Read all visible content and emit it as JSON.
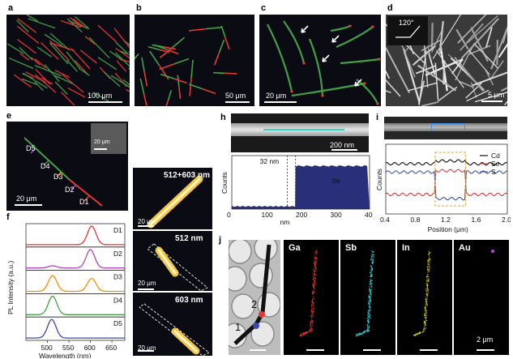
{
  "panel_labels": {
    "a": "a",
    "b": "b",
    "c": "c",
    "d": "d",
    "e": "e",
    "f": "f",
    "g": "g",
    "h": "h",
    "i": "i",
    "j": "j"
  },
  "scalebars": {
    "a": "100 μm",
    "b": "50 μm",
    "c": "20 μm",
    "d": "5 μm",
    "e": "20 μm",
    "e_inset": "20 μm",
    "g1": "20 μm",
    "g2": "20 μm",
    "g3": "20 μm",
    "h": "200 nm",
    "j": "2 μm"
  },
  "d_angle": "120°",
  "e_points": [
    "D5",
    "D4",
    "D3",
    "D2",
    "D1"
  ],
  "g_titles": [
    "512+603 nm",
    "512 nm",
    "603 nm"
  ],
  "h_annotation": "32 nm",
  "h_element": "Se",
  "j_points": [
    "1",
    "2"
  ],
  "j_maps": [
    "Ga",
    "Sb",
    "In",
    "Au"
  ],
  "j_map_colors": [
    "#e03030",
    "#30c8d0",
    "#e8e030",
    "#c040e0"
  ],
  "colors": {
    "red": "#e53935",
    "green": "#43a047",
    "orange": "#fb8c00",
    "purple": "#ab47bc",
    "blue": "#3949ab",
    "navy": "#2a2f7a"
  },
  "chart_data": [
    {
      "type": "line",
      "panel": "f",
      "xlabel": "Wavelength (nm)",
      "ylabel": "PL Intensity (a.u.)",
      "xlim": [
        450,
        680
      ],
      "xticks": [
        500,
        550,
        600,
        650
      ],
      "series": [
        {
          "name": "D1",
          "color": "#e53935",
          "peaks": [
            [
              603,
              1.0
            ]
          ]
        },
        {
          "name": "D2",
          "color": "#ab47bc",
          "peaks": [
            [
              600,
              1.0
            ],
            [
              512,
              0.12
            ]
          ]
        },
        {
          "name": "D3",
          "color": "#fb8c00",
          "peaks": [
            [
              512,
              0.85
            ],
            [
              603,
              0.7
            ]
          ]
        },
        {
          "name": "D4",
          "color": "#43a047",
          "peaks": [
            [
              512,
              1.0
            ]
          ]
        },
        {
          "name": "D5",
          "color": "#3949ab",
          "peaks": [
            [
              510,
              1.0
            ]
          ]
        }
      ]
    },
    {
      "type": "area",
      "panel": "h",
      "xlabel": "nm",
      "ylabel": "Counts",
      "xlim": [
        0,
        400
      ],
      "xticks": [
        0,
        100,
        200,
        300,
        400
      ],
      "step_at": 185,
      "low_level": 0.06,
      "high_level": 0.82
    },
    {
      "type": "line",
      "panel": "i",
      "xlabel": "Position (μm)",
      "ylabel": "Counts",
      "xlim": [
        0.4,
        2.0
      ],
      "xticks": [
        0.4,
        0.8,
        1.2,
        1.6,
        2.0
      ],
      "series": [
        {
          "name": "Cd",
          "color": "#111111",
          "level": [
            0.72,
            0.76
          ]
        },
        {
          "name": "Se",
          "color": "#e53935",
          "level": [
            0.28,
            0.62
          ]
        },
        {
          "name": "S",
          "color": "#3f51b5",
          "level": [
            0.6,
            0.22
          ]
        }
      ],
      "window": [
        1.05,
        1.45
      ]
    }
  ]
}
